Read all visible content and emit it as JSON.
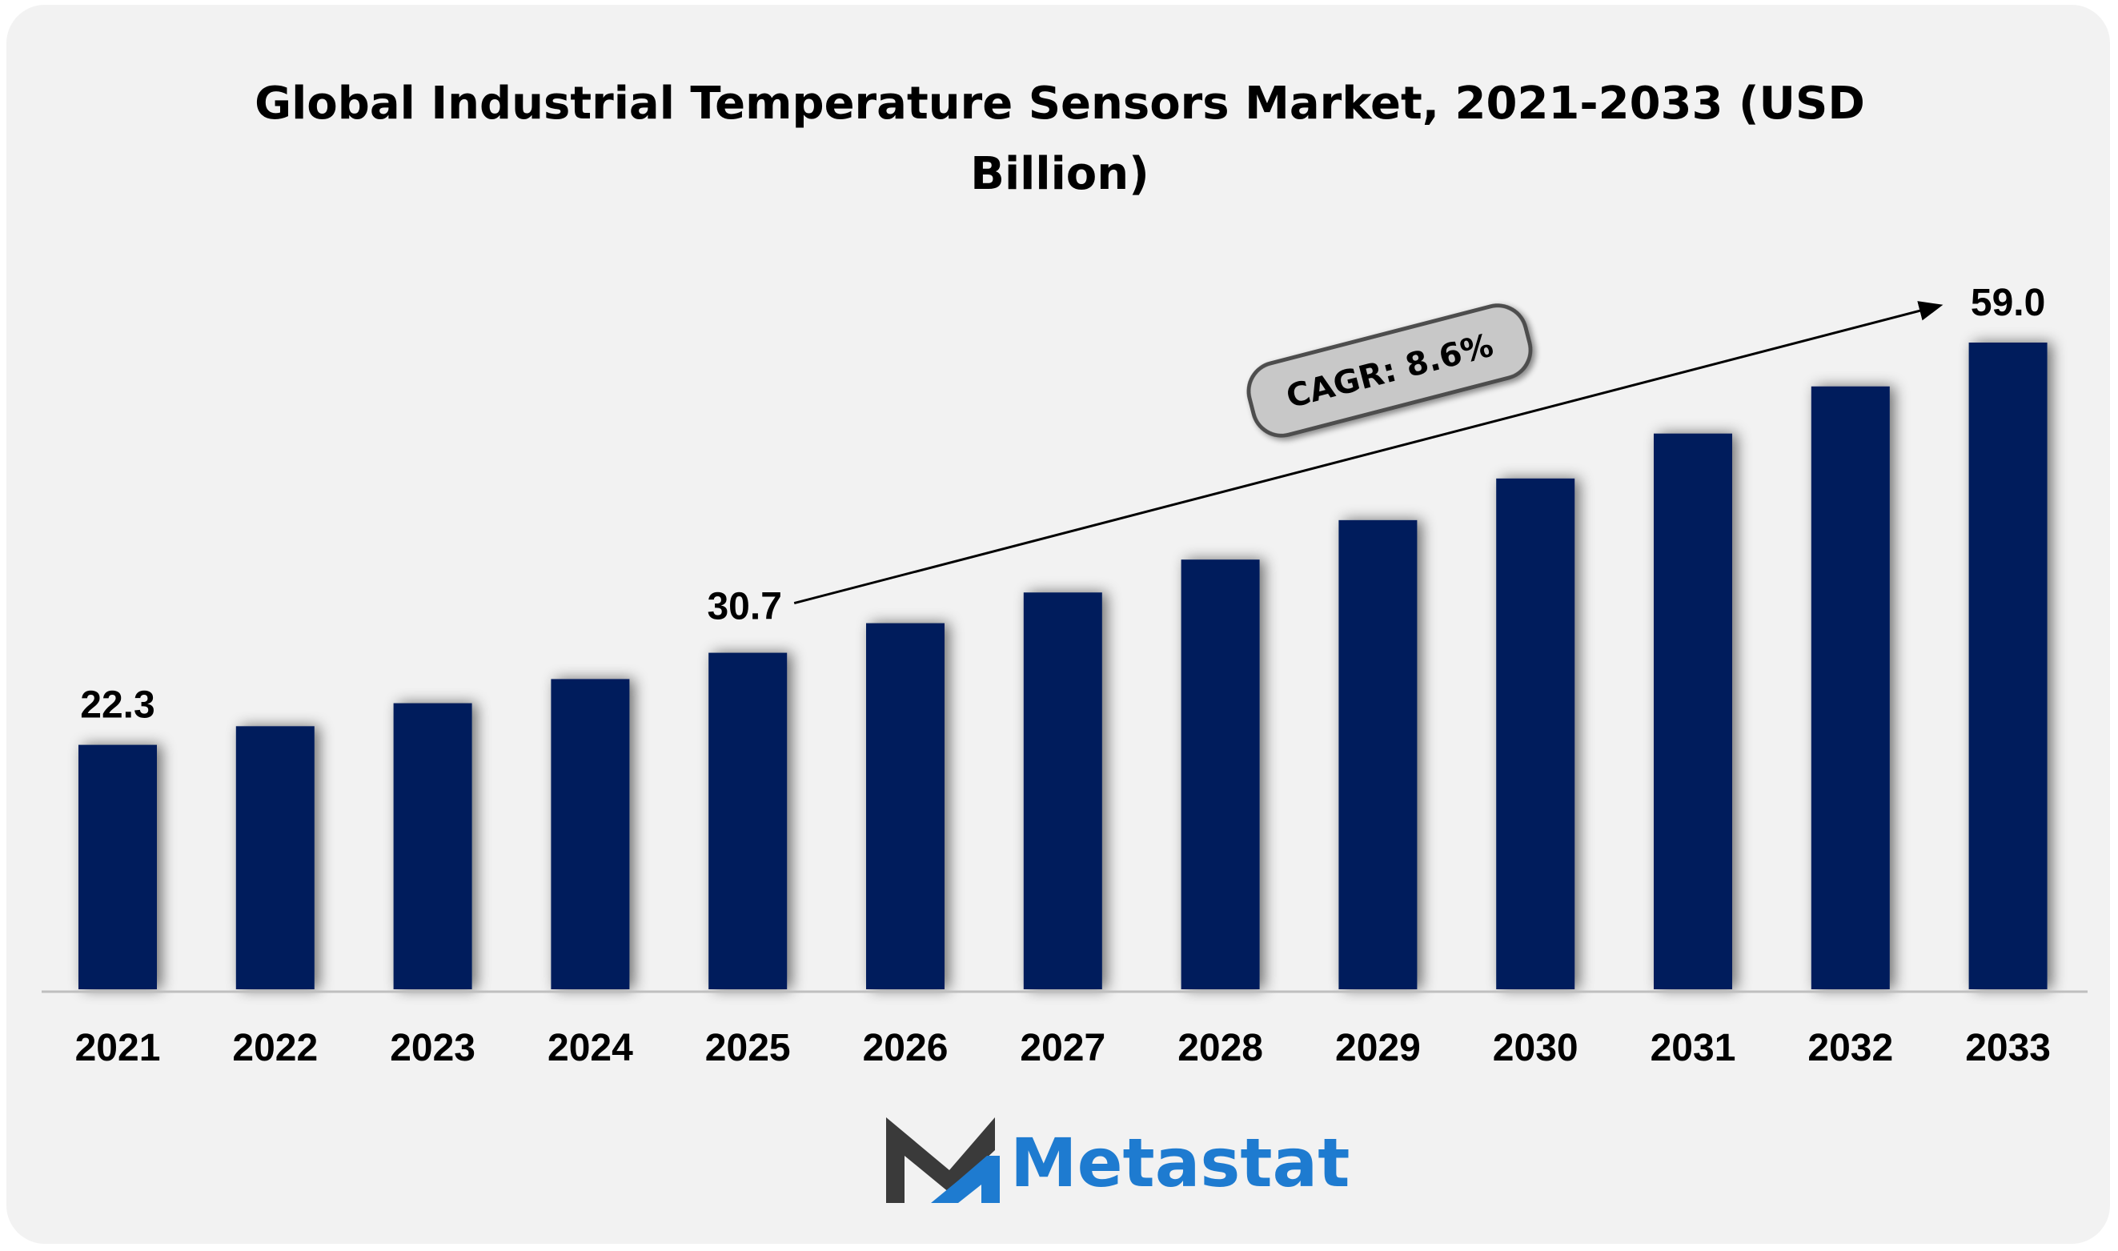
{
  "colors": {
    "bar": "#001f5c",
    "card_background": "#f2f2f2",
    "cagr_badge": "#c8c8c8",
    "brand_dark": "#3a3a3a",
    "brand_blue": "#1e7bd0"
  },
  "chart_data": {
    "type": "bar",
    "title_lines": [
      "Global Industrial Temperature Sensors Market, 2021-2033 (USD",
      "Billion)"
    ],
    "categories": [
      "2021",
      "2022",
      "2023",
      "2024",
      "2025",
      "2026",
      "2027",
      "2028",
      "2029",
      "2030",
      "2031",
      "2032",
      "2033"
    ],
    "values": [
      22.3,
      24.0,
      26.1,
      28.3,
      30.7,
      33.4,
      36.2,
      39.2,
      42.8,
      46.6,
      50.7,
      55.0,
      59.0
    ],
    "data_labels": [
      {
        "category": "2021",
        "text": "22.3"
      },
      {
        "category": "2025",
        "text": "30.7"
      },
      {
        "category": "2033",
        "text": "59.0"
      }
    ],
    "annotation": {
      "text": "CAGR: 8.6%",
      "from_category": "2025",
      "to_category": "2033",
      "icon": "arrow-icon"
    },
    "ylim": [
      0,
      59.0
    ],
    "grid": false,
    "legend": "none"
  },
  "brand": {
    "name": "Metastat",
    "logo_icon": "metastat-m-logo-icon"
  }
}
